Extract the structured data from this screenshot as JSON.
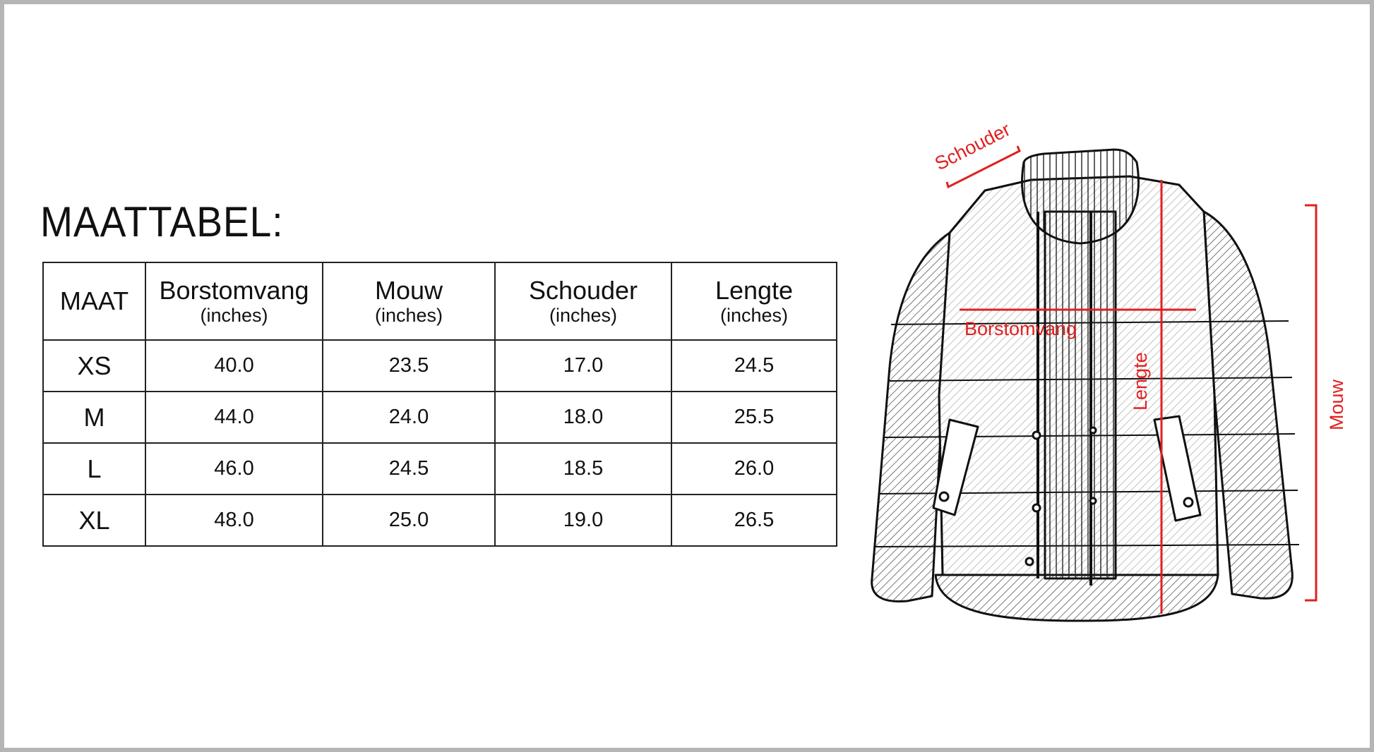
{
  "title": "MAATTABEL:",
  "table": {
    "headers": [
      {
        "label": "MAAT",
        "unit": ""
      },
      {
        "label": "Borstomvang",
        "unit": "(inches)"
      },
      {
        "label": "Mouw",
        "unit": "(inches)"
      },
      {
        "label": "Schouder",
        "unit": "(inches)"
      },
      {
        "label": "Lengte",
        "unit": "(inches)"
      }
    ],
    "rows": [
      [
        "XS",
        "40.0",
        "23.5",
        "17.0",
        "24.5"
      ],
      [
        "M",
        "44.0",
        "24.0",
        "18.0",
        "25.5"
      ],
      [
        "L",
        "46.0",
        "24.5",
        "18.5",
        "26.0"
      ],
      [
        "XL",
        "48.0",
        "25.0",
        "19.0",
        "26.5"
      ]
    ]
  },
  "diagram": {
    "labels": {
      "shoulder": "Schouder",
      "chest": "Borstomvang",
      "length": "Lengte",
      "sleeve": "Mouw"
    },
    "accent_color": "#e02020"
  }
}
